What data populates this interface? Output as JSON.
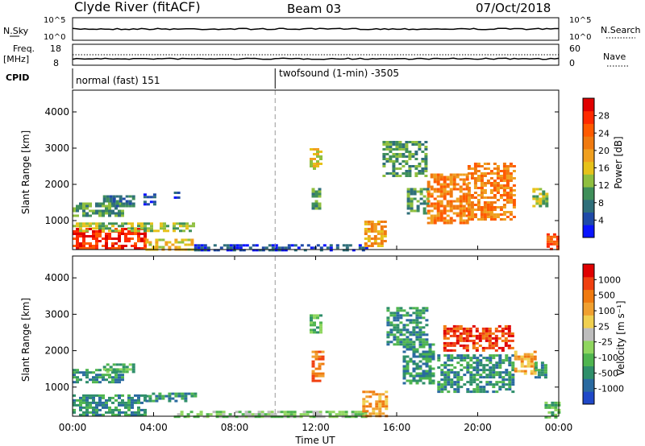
{
  "header": {
    "station": "Clyde River (fitACF)",
    "beam": "Beam 03",
    "date": "07/Oct/2018"
  },
  "colors": {
    "power": [
      "#0a14ff",
      "#1f4aa8",
      "#2f6f7a",
      "#3f8f5a",
      "#8fbf3f",
      "#e6c21a",
      "#f0a020",
      "#f07a10",
      "#ff5a00",
      "#ff2a00",
      "#e00000"
    ],
    "velocity": [
      "#1f48c8",
      "#2a6aa0",
      "#2f8f6a",
      "#4fb54f",
      "#8fd65f",
      "#bdbdbd",
      "#f0d050",
      "#f0a030",
      "#f07a10",
      "#f04010",
      "#e00000"
    ]
  },
  "top_panels": {
    "nsky_label": "N.Sky",
    "nsky_ticks": [
      "10^5",
      "10^0"
    ],
    "nsearch_label": "N.Search",
    "nsearch_ticks": [
      "10^5",
      "10^0"
    ],
    "freq_label": "Freq.",
    "freq_unit": "[MHz]",
    "freq_ticks": [
      "18",
      "8"
    ],
    "nave_label": "Nave",
    "nave_ticks": [
      "60",
      "0"
    ],
    "cpid_label": "CPID",
    "cpid_modes": [
      {
        "label": "normal (fast) 151"
      },
      {
        "label": "twofsound (1-min) -3505"
      }
    ]
  },
  "chart_data": [
    {
      "type": "heatmap",
      "title": "",
      "quantity": "Power",
      "colorbar_label": "Power [dB]",
      "colorbar_ticks": [
        "28",
        "24",
        "20",
        "16",
        "12",
        "8",
        "4"
      ],
      "ylabel": "Slant Range [km]",
      "y_ticks": [
        "4000",
        "3000",
        "2000",
        "1000"
      ],
      "ylim": [
        200,
        4600
      ],
      "xlim": [
        0,
        24
      ],
      "regions": [
        {
          "t": [
            0.0,
            3.6
          ],
          "r": [
            200,
            800
          ],
          "level": 9
        },
        {
          "t": [
            3.6,
            6.0
          ],
          "r": [
            200,
            500
          ],
          "level": 5
        },
        {
          "t": [
            0.0,
            6.0
          ],
          "r": [
            700,
            950
          ],
          "level": 4
        },
        {
          "t": [
            0.0,
            2.5
          ],
          "r": [
            1150,
            1500
          ],
          "level": 3
        },
        {
          "t": [
            1.5,
            3.0
          ],
          "r": [
            1400,
            1700
          ],
          "level": 2
        },
        {
          "t": [
            3.5,
            4.0
          ],
          "r": [
            1450,
            1750
          ],
          "level": 1
        },
        {
          "t": [
            5.0,
            5.2
          ],
          "r": [
            1600,
            1800
          ],
          "level": 1
        },
        {
          "t": [
            6.0,
            14.5
          ],
          "r": [
            200,
            350
          ],
          "level": 1
        },
        {
          "t": [
            11.7,
            12.3
          ],
          "r": [
            2450,
            3000
          ],
          "level": 5
        },
        {
          "t": [
            11.8,
            12.2
          ],
          "r": [
            1300,
            1900
          ],
          "level": 3
        },
        {
          "t": [
            14.4,
            15.5
          ],
          "r": [
            300,
            1000
          ],
          "level": 6
        },
        {
          "t": [
            15.3,
            17.5
          ],
          "r": [
            2200,
            3200
          ],
          "level": 3
        },
        {
          "t": [
            16.5,
            17.5
          ],
          "r": [
            1200,
            1900
          ],
          "level": 3
        },
        {
          "t": [
            17.5,
            19.5
          ],
          "r": [
            900,
            2300
          ],
          "level": 7
        },
        {
          "t": [
            19.5,
            21.8
          ],
          "r": [
            1000,
            2600
          ],
          "level": 7
        },
        {
          "t": [
            22.7,
            23.4
          ],
          "r": [
            1400,
            1900
          ],
          "level": 4
        },
        {
          "t": [
            23.4,
            24.0
          ],
          "r": [
            200,
            650
          ],
          "level": 8
        }
      ]
    },
    {
      "type": "heatmap",
      "title": "",
      "quantity": "Velocity",
      "colorbar_label": "Velocity [m s⁻¹]",
      "colorbar_ticks": [
        "1000",
        "500",
        "100",
        "25",
        "-25",
        "-100",
        "-500",
        "-1000"
      ],
      "ylabel": "Slant Range [km]",
      "y_ticks": [
        "4000",
        "3000",
        "2000",
        "1000"
      ],
      "ylim": [
        200,
        4600
      ],
      "xlim": [
        0,
        24
      ],
      "regions": [
        {
          "t": [
            0.0,
            3.6
          ],
          "r": [
            250,
            800
          ],
          "level": 2
        },
        {
          "t": [
            3.6,
            6.0
          ],
          "r": [
            600,
            850
          ],
          "level": 2
        },
        {
          "t": [
            0.0,
            2.5
          ],
          "r": [
            1150,
            1500
          ],
          "level": 2
        },
        {
          "t": [
            1.5,
            3.0
          ],
          "r": [
            1400,
            1650
          ],
          "level": 3
        },
        {
          "t": [
            5.0,
            14.5
          ],
          "r": [
            200,
            350
          ],
          "level": 4
        },
        {
          "t": [
            11.7,
            12.3
          ],
          "r": [
            2500,
            3000
          ],
          "level": 3
        },
        {
          "t": [
            11.8,
            12.3
          ],
          "r": [
            1200,
            2000
          ],
          "level": 8
        },
        {
          "t": [
            14.3,
            15.5
          ],
          "r": [
            200,
            900
          ],
          "level": 7
        },
        {
          "t": [
            15.5,
            17.5
          ],
          "r": [
            2200,
            3200
          ],
          "level": 2
        },
        {
          "t": [
            16.3,
            17.8
          ],
          "r": [
            1100,
            2200
          ],
          "level": 2
        },
        {
          "t": [
            18.3,
            21.8
          ],
          "r": [
            2000,
            2700
          ],
          "level": 9
        },
        {
          "t": [
            18.0,
            21.8
          ],
          "r": [
            900,
            1900
          ],
          "level": 2
        },
        {
          "t": [
            21.8,
            22.8
          ],
          "r": [
            1400,
            2000
          ],
          "level": 7
        },
        {
          "t": [
            22.8,
            23.4
          ],
          "r": [
            1300,
            1700
          ],
          "level": 2
        },
        {
          "t": [
            23.3,
            24.0
          ],
          "r": [
            200,
            600
          ],
          "level": 3
        }
      ]
    }
  ],
  "x_axis": {
    "label": "Time UT",
    "ticks": [
      "00:00",
      "04:00",
      "08:00",
      "12:00",
      "16:00",
      "20:00",
      "00:00"
    ],
    "mode_change_hour": 10.0
  }
}
